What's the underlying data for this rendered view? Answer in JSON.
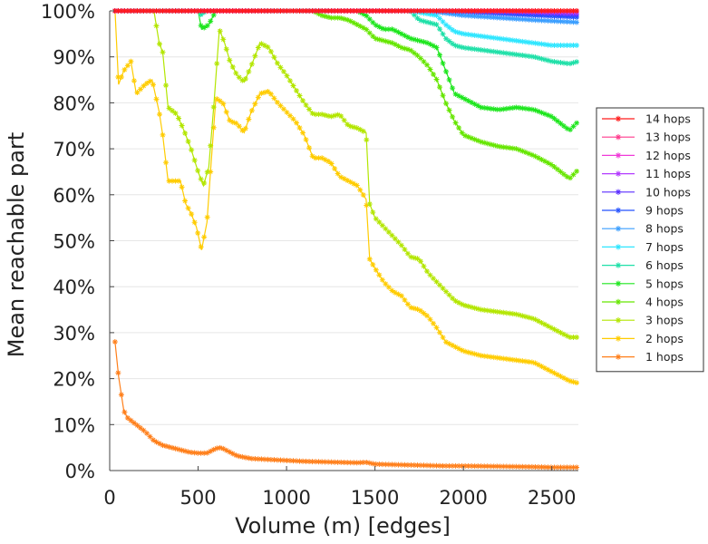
{
  "chart_data": {
    "type": "line",
    "title": "",
    "xlabel": "Volume (m) [edges]",
    "ylabel": "Mean reachable part",
    "xlim": [
      0,
      2650
    ],
    "ylim": [
      0,
      100
    ],
    "xticks": [
      0,
      500,
      1000,
      1500,
      2000,
      2500
    ],
    "xtick_labels": [
      "0",
      "500",
      "1000",
      "1500",
      "2000",
      "2500"
    ],
    "yticks": [
      0,
      10,
      20,
      30,
      40,
      50,
      60,
      70,
      80,
      90,
      100
    ],
    "ytick_labels": [
      "0%",
      "10%",
      "20%",
      "30%",
      "40%",
      "50%",
      "60%",
      "70%",
      "80%",
      "90%",
      "100%"
    ],
    "grid": true,
    "legend_position": "right",
    "marker": "star",
    "series": [
      {
        "name": "14 hops",
        "color": "#ff1a1a",
        "points": [
          [
            30,
            100
          ],
          [
            2650,
            100
          ]
        ]
      },
      {
        "name": "13 hops",
        "color": "#ff3a8c",
        "points": [
          [
            30,
            100
          ],
          [
            2650,
            100
          ]
        ]
      },
      {
        "name": "12 hops",
        "color": "#f03ad8",
        "points": [
          [
            30,
            100
          ],
          [
            2650,
            100
          ]
        ]
      },
      {
        "name": "11 hops",
        "color": "#b33aff",
        "points": [
          [
            30,
            100
          ],
          [
            2000,
            100
          ],
          [
            2400,
            99.8
          ],
          [
            2650,
            99.6
          ]
        ]
      },
      {
        "name": "10 hops",
        "color": "#5a2dff",
        "points": [
          [
            30,
            100
          ],
          [
            2000,
            100
          ],
          [
            2400,
            99.6
          ],
          [
            2650,
            99.2
          ]
        ]
      },
      {
        "name": "9 hops",
        "color": "#2452ff",
        "points": [
          [
            30,
            100
          ],
          [
            1900,
            100
          ],
          [
            2100,
            99.6
          ],
          [
            2400,
            99
          ],
          [
            2650,
            98.6
          ]
        ]
      },
      {
        "name": "8 hops",
        "color": "#3a9eff",
        "points": [
          [
            30,
            100
          ],
          [
            1800,
            100
          ],
          [
            2000,
            99
          ],
          [
            2200,
            98.5
          ],
          [
            2400,
            98
          ],
          [
            2650,
            97.5
          ]
        ]
      },
      {
        "name": "7 hops",
        "color": "#2ee6ff",
        "points": [
          [
            30,
            100
          ],
          [
            1700,
            100
          ],
          [
            1850,
            99
          ],
          [
            1900,
            97
          ],
          [
            1950,
            95.5
          ],
          [
            2000,
            95
          ],
          [
            2100,
            94.5
          ],
          [
            2200,
            94
          ],
          [
            2300,
            93.5
          ],
          [
            2400,
            93
          ],
          [
            2500,
            92.5
          ],
          [
            2650,
            92.5
          ]
        ]
      },
      {
        "name": "6 hops",
        "color": "#1fe0a8",
        "points": [
          [
            30,
            100
          ],
          [
            500,
            100
          ],
          [
            520,
            99
          ],
          [
            540,
            100
          ],
          [
            1700,
            100
          ],
          [
            1750,
            98
          ],
          [
            1850,
            97
          ],
          [
            1900,
            94
          ],
          [
            1950,
            92.5
          ],
          [
            2000,
            92
          ],
          [
            2100,
            91.5
          ],
          [
            2200,
            91
          ],
          [
            2300,
            90.5
          ],
          [
            2400,
            90
          ],
          [
            2500,
            89
          ],
          [
            2600,
            88.5
          ],
          [
            2650,
            89
          ]
        ]
      },
      {
        "name": "5 hops",
        "color": "#1ee61e",
        "points": [
          [
            30,
            100
          ],
          [
            500,
            100
          ],
          [
            520,
            96
          ],
          [
            560,
            97
          ],
          [
            600,
            100
          ],
          [
            1400,
            100
          ],
          [
            1450,
            99
          ],
          [
            1500,
            97
          ],
          [
            1550,
            96
          ],
          [
            1600,
            96
          ],
          [
            1650,
            95
          ],
          [
            1700,
            94
          ],
          [
            1750,
            93.5
          ],
          [
            1800,
            93
          ],
          [
            1850,
            92
          ],
          [
            1900,
            87
          ],
          [
            1950,
            82
          ],
          [
            2000,
            81
          ],
          [
            2100,
            79
          ],
          [
            2200,
            78.5
          ],
          [
            2300,
            79
          ],
          [
            2400,
            78.5
          ],
          [
            2500,
            77
          ],
          [
            2600,
            74
          ],
          [
            2650,
            76
          ]
        ]
      },
      {
        "name": "4 hops",
        "color": "#66e600",
        "points": [
          [
            30,
            100
          ],
          [
            1150,
            100
          ],
          [
            1200,
            99
          ],
          [
            1250,
            98.5
          ],
          [
            1300,
            98.5
          ],
          [
            1350,
            98
          ],
          [
            1400,
            97
          ],
          [
            1450,
            96
          ],
          [
            1500,
            94
          ],
          [
            1550,
            93.5
          ],
          [
            1600,
            93
          ],
          [
            1650,
            92
          ],
          [
            1700,
            91.5
          ],
          [
            1750,
            90
          ],
          [
            1800,
            88
          ],
          [
            1850,
            85
          ],
          [
            1900,
            80
          ],
          [
            1950,
            76
          ],
          [
            2000,
            73
          ],
          [
            2100,
            71.5
          ],
          [
            2200,
            70.5
          ],
          [
            2300,
            70
          ],
          [
            2400,
            68.5
          ],
          [
            2500,
            66.5
          ],
          [
            2600,
            63.5
          ],
          [
            2650,
            65.5
          ]
        ]
      },
      {
        "name": "3 hops",
        "color": "#b3e600",
        "points": [
          [
            30,
            100
          ],
          [
            150,
            100
          ],
          [
            250,
            100
          ],
          [
            280,
            93
          ],
          [
            300,
            91
          ],
          [
            330,
            79
          ],
          [
            380,
            77.5
          ],
          [
            420,
            74
          ],
          [
            460,
            70
          ],
          [
            500,
            65
          ],
          [
            530,
            62
          ],
          [
            560,
            66
          ],
          [
            590,
            80
          ],
          [
            620,
            96
          ],
          [
            650,
            93
          ],
          [
            680,
            89
          ],
          [
            720,
            86
          ],
          [
            760,
            84.5
          ],
          [
            800,
            88
          ],
          [
            850,
            93
          ],
          [
            900,
            92
          ],
          [
            950,
            88.5
          ],
          [
            1000,
            86
          ],
          [
            1050,
            83
          ],
          [
            1100,
            80
          ],
          [
            1150,
            77.5
          ],
          [
            1200,
            77.5
          ],
          [
            1250,
            77
          ],
          [
            1300,
            77.5
          ],
          [
            1350,
            75
          ],
          [
            1400,
            74.5
          ],
          [
            1450,
            73.5
          ],
          [
            1470,
            58
          ],
          [
            1500,
            55
          ],
          [
            1550,
            53
          ],
          [
            1600,
            51
          ],
          [
            1650,
            49
          ],
          [
            1700,
            46.5
          ],
          [
            1750,
            46
          ],
          [
            1800,
            43
          ],
          [
            1850,
            41
          ],
          [
            1900,
            39
          ],
          [
            1950,
            37
          ],
          [
            2000,
            36
          ],
          [
            2100,
            35
          ],
          [
            2200,
            34.5
          ],
          [
            2300,
            34
          ],
          [
            2400,
            33
          ],
          [
            2500,
            31
          ],
          [
            2600,
            29
          ],
          [
            2650,
            29
          ]
        ]
      },
      {
        "name": "2 hops",
        "color": "#ffcc00",
        "points": [
          [
            30,
            100
          ],
          [
            50,
            84
          ],
          [
            80,
            87
          ],
          [
            120,
            89
          ],
          [
            150,
            82
          ],
          [
            200,
            84
          ],
          [
            240,
            85
          ],
          [
            280,
            78
          ],
          [
            300,
            73
          ],
          [
            330,
            63
          ],
          [
            360,
            63
          ],
          [
            400,
            63
          ],
          [
            430,
            58
          ],
          [
            460,
            56
          ],
          [
            490,
            53
          ],
          [
            520,
            48
          ],
          [
            550,
            54
          ],
          [
            570,
            65
          ],
          [
            600,
            81
          ],
          [
            640,
            80
          ],
          [
            680,
            76
          ],
          [
            720,
            75.5
          ],
          [
            760,
            73.5
          ],
          [
            800,
            78
          ],
          [
            850,
            82
          ],
          [
            900,
            82.5
          ],
          [
            950,
            80
          ],
          [
            1000,
            78
          ],
          [
            1050,
            76
          ],
          [
            1100,
            73
          ],
          [
            1150,
            68
          ],
          [
            1200,
            68
          ],
          [
            1250,
            67
          ],
          [
            1300,
            64
          ],
          [
            1350,
            63
          ],
          [
            1400,
            62
          ],
          [
            1450,
            59
          ],
          [
            1470,
            46
          ],
          [
            1500,
            44
          ],
          [
            1550,
            41
          ],
          [
            1600,
            39
          ],
          [
            1650,
            38
          ],
          [
            1700,
            35.5
          ],
          [
            1750,
            35
          ],
          [
            1800,
            33.5
          ],
          [
            1850,
            31
          ],
          [
            1900,
            28
          ],
          [
            1950,
            27
          ],
          [
            2000,
            26
          ],
          [
            2100,
            25
          ],
          [
            2200,
            24.5
          ],
          [
            2300,
            24
          ],
          [
            2400,
            23.5
          ],
          [
            2500,
            21.5
          ],
          [
            2600,
            19.5
          ],
          [
            2650,
            19
          ]
        ]
      },
      {
        "name": "1 hops",
        "color": "#ff7f1a",
        "points": [
          [
            30,
            28
          ],
          [
            50,
            20.5
          ],
          [
            80,
            13
          ],
          [
            100,
            11.5
          ],
          [
            150,
            10
          ],
          [
            200,
            8.5
          ],
          [
            250,
            6.5
          ],
          [
            300,
            5.5
          ],
          [
            350,
            5
          ],
          [
            400,
            4.5
          ],
          [
            450,
            4
          ],
          [
            500,
            3.8
          ],
          [
            550,
            3.8
          ],
          [
            600,
            4.8
          ],
          [
            630,
            5
          ],
          [
            680,
            4
          ],
          [
            720,
            3.2
          ],
          [
            800,
            2.6
          ],
          [
            900,
            2.4
          ],
          [
            1000,
            2.2
          ],
          [
            1100,
            2
          ],
          [
            1200,
            1.9
          ],
          [
            1300,
            1.8
          ],
          [
            1400,
            1.7
          ],
          [
            1450,
            1.8
          ],
          [
            1500,
            1.4
          ],
          [
            1600,
            1.3
          ],
          [
            1700,
            1.2
          ],
          [
            1800,
            1.1
          ],
          [
            1900,
            1
          ],
          [
            2000,
            1
          ],
          [
            2200,
            0.9
          ],
          [
            2400,
            0.8
          ],
          [
            2500,
            0.7
          ],
          [
            2650,
            0.7
          ]
        ]
      }
    ]
  }
}
